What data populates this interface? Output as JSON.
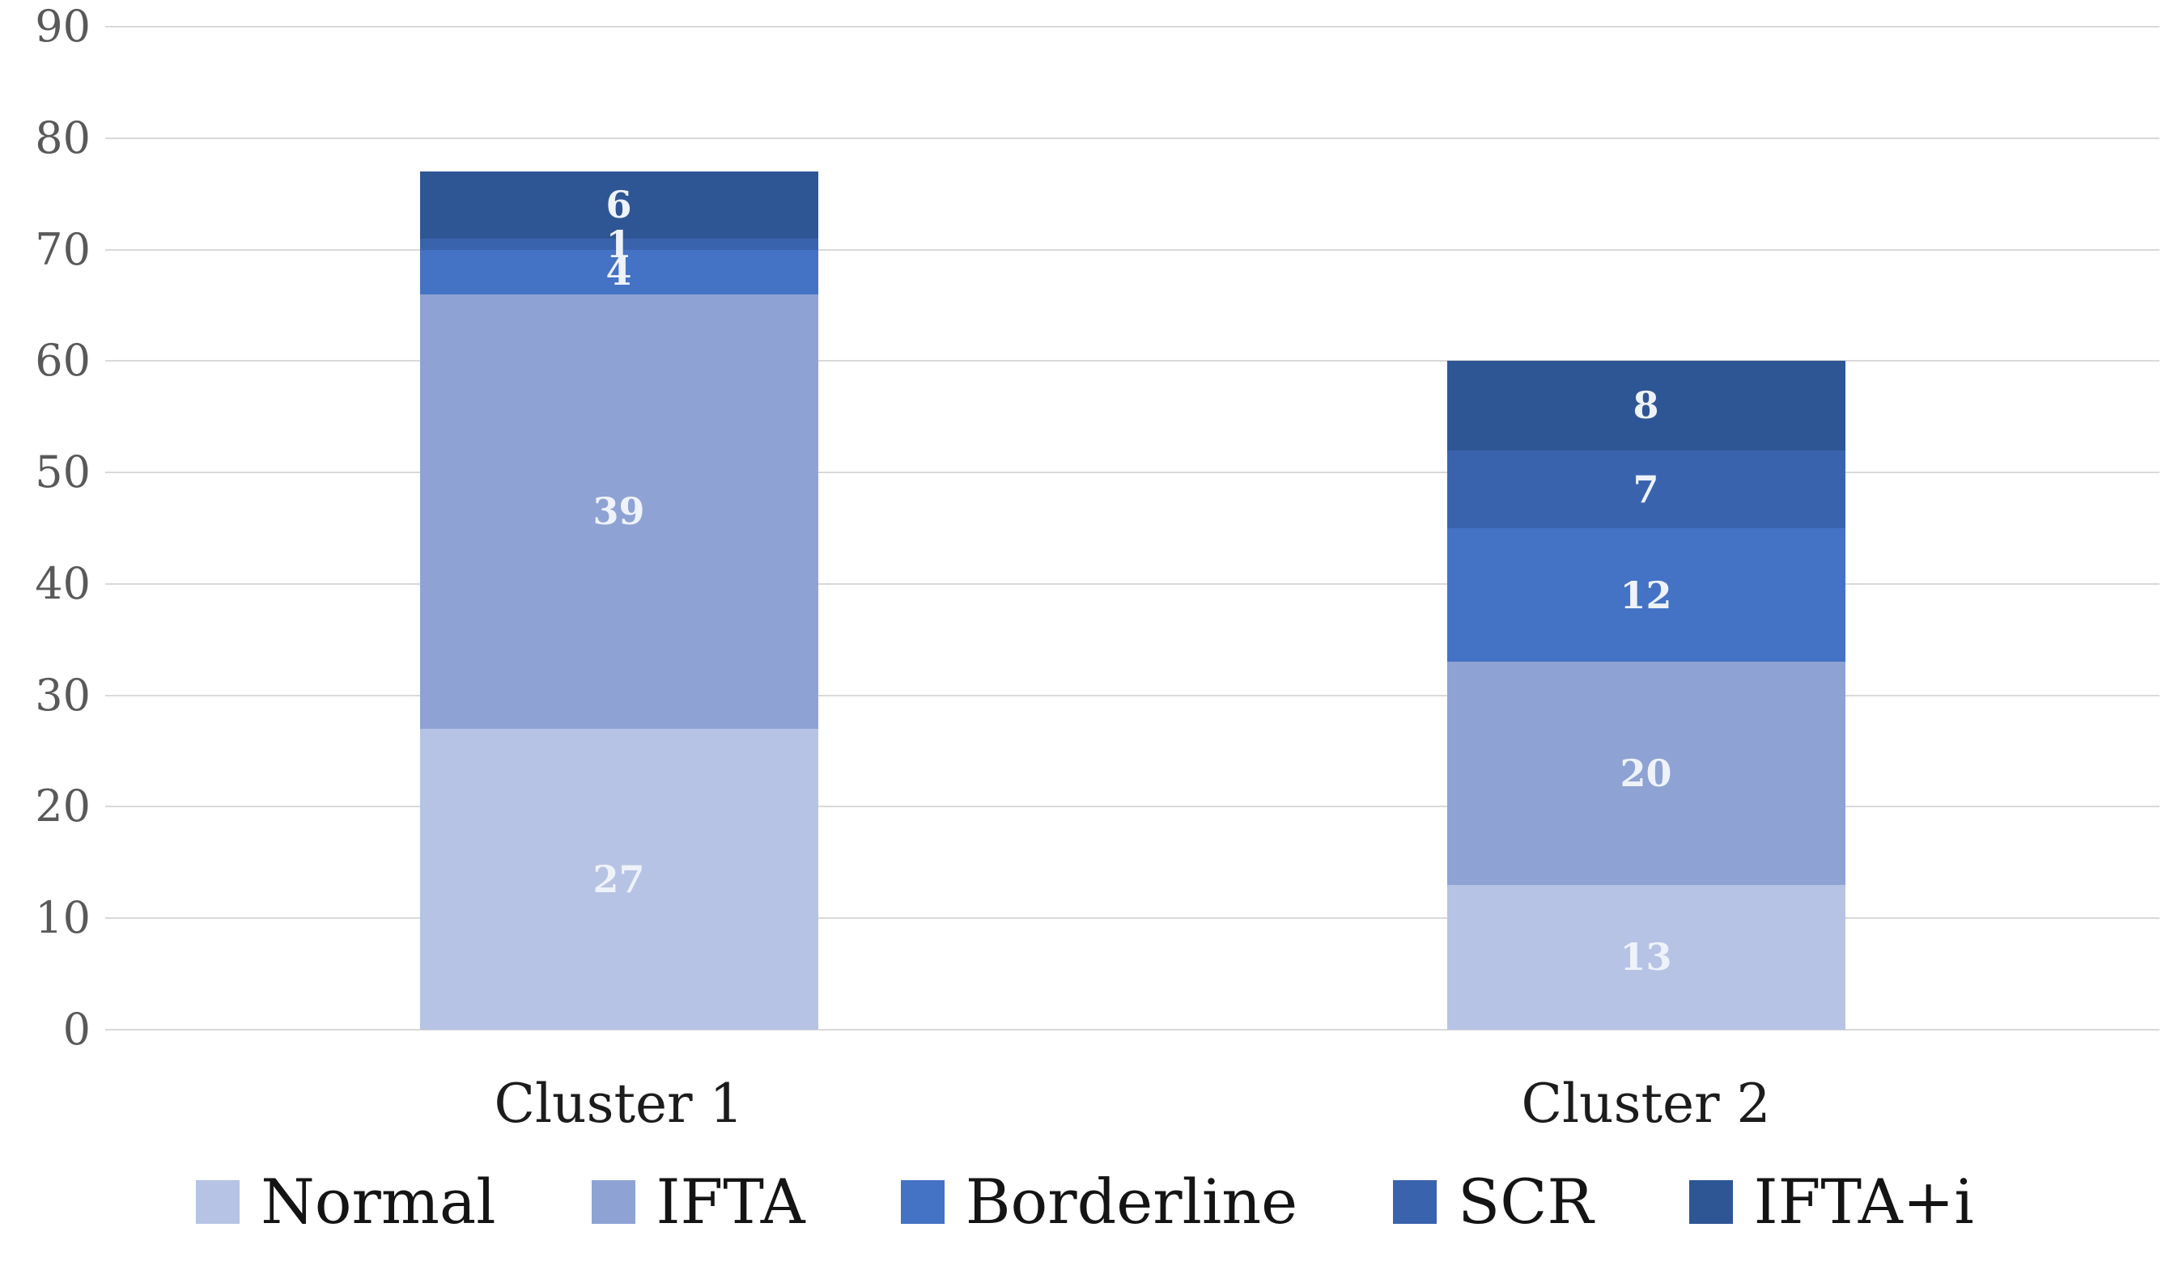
{
  "chart_data": {
    "type": "bar",
    "stacked": true,
    "title": "",
    "xlabel": "",
    "ylabel": "",
    "categories": [
      "Cluster 1",
      "Cluster 2"
    ],
    "series": [
      {
        "name": "Normal",
        "values": [
          27,
          13
        ],
        "color": "#b7c3e4"
      },
      {
        "name": "IFTA",
        "values": [
          39,
          20
        ],
        "color": "#8fa2d4"
      },
      {
        "name": "Borderline",
        "values": [
          4,
          12
        ],
        "color": "#4472c4"
      },
      {
        "name": "SCR",
        "values": [
          1,
          7
        ],
        "color": "#3a63ae"
      },
      {
        "name": "IFTA+i",
        "values": [
          6,
          8
        ],
        "color": "#2f5694"
      }
    ],
    "totals": [
      77,
      60
    ],
    "ylim": [
      0,
      90
    ],
    "yticks": [
      0,
      10,
      20,
      30,
      40,
      50,
      60,
      70,
      80,
      90
    ],
    "grid": true,
    "data_labels": true,
    "legend_position": "bottom",
    "style": {
      "background": "#ffffff",
      "gridline_color": "#d9d9d9",
      "tick_color": "#595959",
      "category_label_color": "#1c1c1c",
      "data_label_color": "#eef2fa",
      "legend_text_color": "#141414"
    }
  }
}
